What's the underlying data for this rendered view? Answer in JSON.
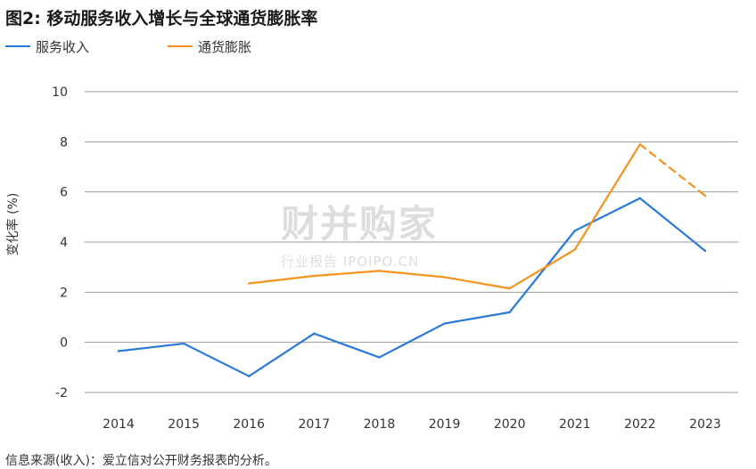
{
  "title": "图2: 移动服务收入增长与全球通货膨胀率",
  "source": "信息来源(收入)：爱立信对公开财务报表的分析。",
  "watermark": {
    "main": "财并购家",
    "sub": "行业报告 IPOIPO.CN"
  },
  "chart_data": {
    "type": "line",
    "title": "图2: 移动服务收入增长与全球通货膨胀率",
    "xlabel": "",
    "ylabel": "变化率 (%)",
    "x": [
      "2014",
      "2015",
      "2016",
      "2017",
      "2018",
      "2019",
      "2020",
      "2021",
      "2022",
      "2023"
    ],
    "ylim": [
      -2,
      10
    ],
    "yticks": [
      "10",
      "8",
      "6",
      "4",
      "2",
      "0",
      "-2"
    ],
    "grid": true,
    "legend_position": "top-left",
    "series": [
      {
        "name": "服务收入",
        "color": "#2a78d8",
        "values": [
          -0.35,
          -0.05,
          -1.35,
          0.35,
          -0.6,
          0.75,
          1.2,
          4.45,
          5.75,
          3.65
        ]
      },
      {
        "name": "通货膨胀",
        "color": "#f5921e",
        "values": [
          null,
          null,
          2.35,
          2.65,
          2.85,
          2.6,
          2.15,
          3.7,
          7.9,
          5.85
        ],
        "dashed_from_index": 8
      }
    ]
  }
}
